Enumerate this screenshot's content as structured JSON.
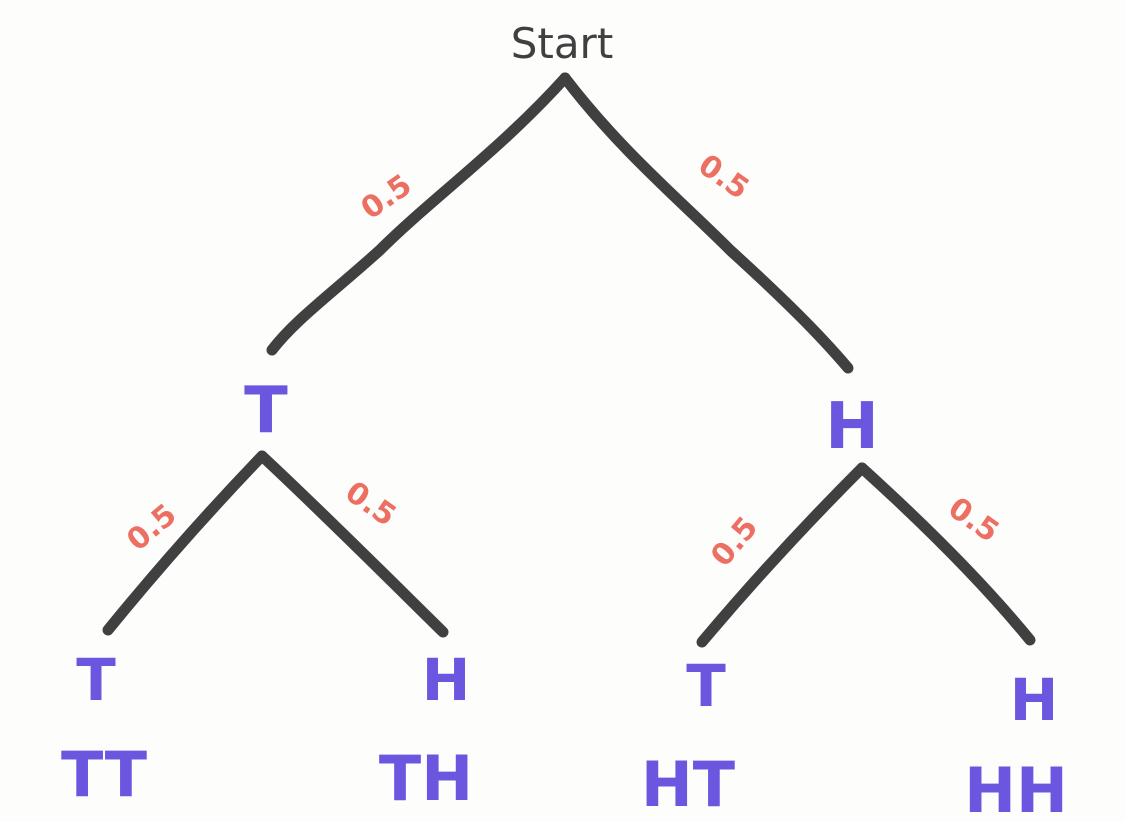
{
  "start": {
    "label": "Start"
  },
  "level1": {
    "left": {
      "label": "T",
      "prob": "0.5"
    },
    "right": {
      "label": "H",
      "prob": "0.5"
    }
  },
  "level2": [
    {
      "label": "T",
      "prob": "0.5",
      "outcome": "TT"
    },
    {
      "label": "H",
      "prob": "0.5",
      "outcome": "TH"
    },
    {
      "label": "T",
      "prob": "0.5",
      "outcome": "HT"
    },
    {
      "label": "H",
      "prob": "0.5",
      "outcome": "HH"
    }
  ],
  "colors": {
    "branch": "#3f403f",
    "probability": "#ec6f62",
    "node": "#6b56e0",
    "background": "#fdfdfc"
  }
}
